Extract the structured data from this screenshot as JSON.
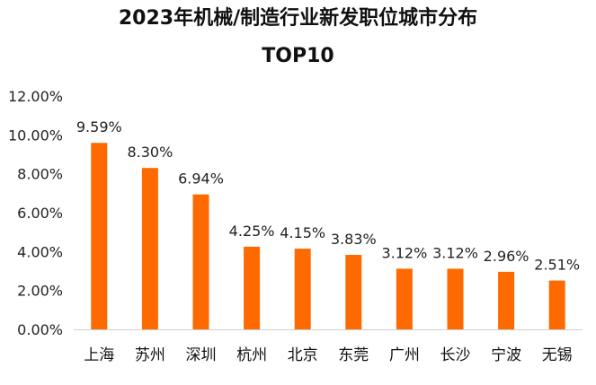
{
  "chart_data": {
    "type": "bar",
    "title": "2023年机械/制造行业新发职位城市分布",
    "subtitle": "TOP10",
    "categories": [
      "上海",
      "苏州",
      "深圳",
      "杭州",
      "北京",
      "东莞",
      "广州",
      "长沙",
      "宁波",
      "无锡"
    ],
    "values": [
      9.59,
      8.3,
      6.94,
      4.25,
      4.15,
      3.83,
      3.12,
      3.12,
      2.96,
      2.51
    ],
    "data_labels": [
      "9.59%",
      "8.30%",
      "6.94%",
      "4.25%",
      "4.15%",
      "3.83%",
      "3.12%",
      "3.12%",
      "2.96%",
      "2.51%"
    ],
    "y_ticks": [
      0,
      2,
      4,
      6,
      8,
      10,
      12
    ],
    "y_tick_labels": [
      "0.00%",
      "2.00%",
      "4.00%",
      "6.00%",
      "8.00%",
      "10.00%",
      "12.00%"
    ],
    "ylim": [
      0,
      12
    ],
    "xlabel": "",
    "ylabel": "",
    "grid": false,
    "bar_color": "#FF6A00"
  }
}
